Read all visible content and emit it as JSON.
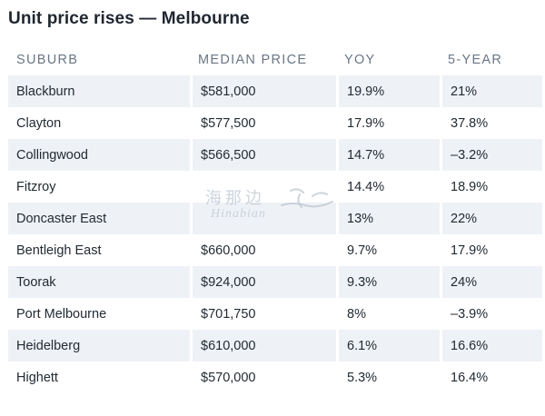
{
  "title": "Unit price rises — Melbourne",
  "table": {
    "headers": [
      "SUBURB",
      "MEDIAN PRICE",
      "YOY",
      "5-YEAR"
    ],
    "rows": [
      [
        "Blackburn",
        "$581,000",
        "19.9%",
        "21%"
      ],
      [
        "Clayton",
        "$577,500",
        "17.9%",
        "37.8%"
      ],
      [
        "Collingwood",
        "$566,500",
        "14.7%",
        "–3.2%"
      ],
      [
        "Fitzroy",
        "",
        "14.4%",
        "18.9%"
      ],
      [
        "Doncaster East",
        "",
        "13%",
        "22%"
      ],
      [
        "Bentleigh East",
        "$660,000",
        "9.7%",
        "17.9%"
      ],
      [
        "Toorak",
        "$924,000",
        "9.3%",
        "24%"
      ],
      [
        "Port Melbourne",
        "$701,750",
        "8%",
        "–3.9%"
      ],
      [
        "Heidelberg",
        "$610,000",
        "6.1%",
        "16.6%"
      ],
      [
        "Highett",
        "$570,000",
        "5.3%",
        "16.4%"
      ]
    ]
  },
  "watermark": {
    "chinese": "海那边",
    "latin": "Hinabian"
  },
  "colors": {
    "stripe": "#eef2f6",
    "header_text": "#6a7684",
    "body_text": "#222a33"
  }
}
